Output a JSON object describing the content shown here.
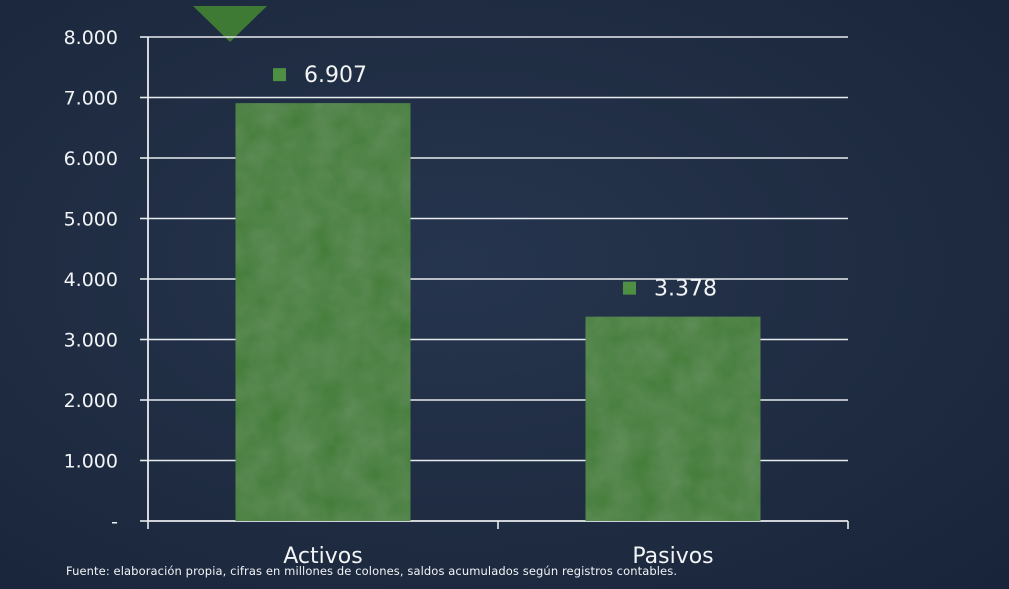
{
  "chart_data": {
    "type": "bar",
    "categories": [
      "Activos",
      "Pasivos"
    ],
    "values": [
      6907,
      3378
    ],
    "data_labels": [
      "6.907",
      "3.378"
    ],
    "ylim": [
      0,
      8000
    ],
    "yticks": [
      0,
      1000,
      2000,
      3000,
      4000,
      5000,
      6000,
      7000,
      8000
    ],
    "ytick_labels": [
      "-",
      "1.000",
      "2.000",
      "3.000",
      "4.000",
      "5.000",
      "6.000",
      "7.000",
      "8.000"
    ],
    "grid": true,
    "bar_color": "#3f7a35",
    "marker_color": "#4f8f43",
    "background_color": "#1f2c42",
    "text_color": "#f2f4f6"
  },
  "source_note": "Fuente: elaboración propia, cifras en millones de colones, saldos acumulados según registros contables."
}
